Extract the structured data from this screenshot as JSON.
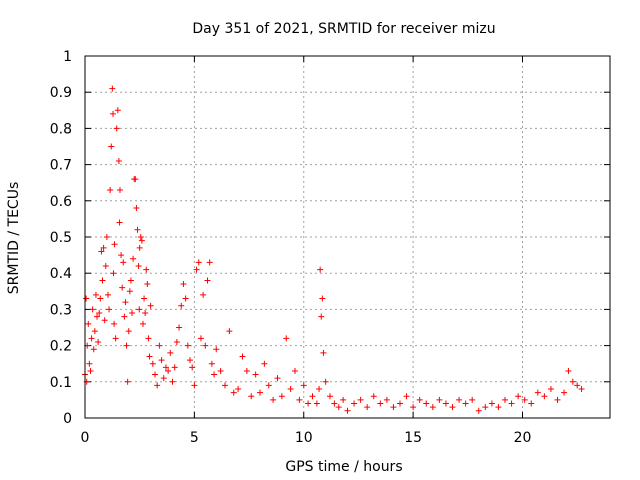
{
  "chart_data": {
    "type": "scatter",
    "title": "Day 351 of 2021, SRMTID for receiver mizu",
    "xlabel": "GPS time / hours",
    "ylabel": "SRMTID / TECUs",
    "xlim": [
      0,
      24
    ],
    "ylim": [
      0,
      1
    ],
    "x_ticks": [
      0,
      5,
      10,
      15,
      20
    ],
    "x_tick_labels": [
      "0",
      "5",
      "10",
      "15",
      "20"
    ],
    "y_ticks": [
      0,
      0.1,
      0.2,
      0.3,
      0.4,
      0.5,
      0.6,
      0.7,
      0.8,
      0.9,
      1
    ],
    "y_tick_labels": [
      "0",
      "0.1",
      "0.2",
      "0.3",
      "0.4",
      "0.5",
      "0.6",
      "0.7",
      "0.8",
      "0.9",
      "1"
    ],
    "grid": true,
    "marker": "+",
    "color": "#ff0000",
    "series": [
      {
        "name": "SRMTID",
        "x": [
          0.0,
          0.05,
          0.08,
          0.1,
          0.15,
          0.2,
          0.25,
          0.3,
          0.35,
          0.4,
          0.45,
          0.5,
          0.55,
          0.6,
          0.65,
          0.7,
          0.75,
          0.8,
          0.85,
          0.9,
          0.95,
          1.0,
          1.05,
          1.1,
          1.15,
          1.2,
          1.25,
          1.28,
          1.3,
          1.33,
          1.35,
          1.4,
          1.45,
          1.5,
          1.55,
          1.58,
          1.6,
          1.65,
          1.7,
          1.75,
          1.8,
          1.85,
          1.9,
          1.95,
          2.0,
          2.05,
          2.1,
          2.15,
          2.2,
          2.25,
          2.3,
          2.35,
          2.4,
          2.45,
          2.48,
          2.5,
          2.55,
          2.6,
          2.65,
          2.7,
          2.75,
          2.8,
          2.85,
          2.9,
          2.95,
          3.0,
          3.1,
          3.2,
          3.3,
          3.4,
          3.5,
          3.6,
          3.7,
          3.8,
          3.9,
          4.0,
          4.1,
          4.2,
          4.3,
          4.4,
          4.5,
          4.6,
          4.7,
          4.8,
          4.9,
          5.0,
          5.1,
          5.2,
          5.3,
          5.4,
          5.5,
          5.6,
          5.7,
          5.8,
          5.9,
          6.0,
          6.2,
          6.4,
          6.6,
          6.8,
          7.0,
          7.2,
          7.4,
          7.6,
          7.8,
          8.0,
          8.2,
          8.4,
          8.6,
          8.8,
          9.0,
          9.2,
          9.4,
          9.6,
          9.8,
          10.0,
          10.2,
          10.4,
          10.6,
          10.7,
          10.75,
          10.8,
          10.85,
          10.9,
          11.0,
          11.2,
          11.4,
          11.6,
          11.8,
          12.0,
          12.3,
          12.6,
          12.9,
          13.2,
          13.5,
          13.8,
          14.1,
          14.4,
          14.7,
          15.0,
          15.3,
          15.6,
          15.9,
          16.2,
          16.5,
          16.8,
          17.1,
          17.4,
          17.7,
          18.0,
          18.3,
          18.6,
          18.9,
          19.2,
          19.5,
          19.8,
          20.1,
          20.4,
          20.7,
          21.0,
          21.3,
          21.6,
          21.9,
          22.1,
          22.3,
          22.5,
          22.7
        ],
        "y": [
          0.12,
          0.33,
          0.1,
          0.2,
          0.26,
          0.15,
          0.13,
          0.22,
          0.3,
          0.19,
          0.24,
          0.34,
          0.28,
          0.21,
          0.29,
          0.33,
          0.46,
          0.38,
          0.47,
          0.27,
          0.42,
          0.5,
          0.34,
          0.3,
          0.63,
          0.75,
          0.91,
          0.84,
          0.4,
          0.26,
          0.48,
          0.22,
          0.8,
          0.85,
          0.71,
          0.54,
          0.63,
          0.45,
          0.36,
          0.43,
          0.28,
          0.32,
          0.2,
          0.1,
          0.24,
          0.35,
          0.38,
          0.29,
          0.44,
          0.66,
          0.66,
          0.58,
          0.52,
          0.42,
          0.3,
          0.47,
          0.5,
          0.49,
          0.26,
          0.33,
          0.29,
          0.41,
          0.37,
          0.22,
          0.17,
          0.31,
          0.15,
          0.12,
          0.09,
          0.2,
          0.16,
          0.11,
          0.14,
          0.13,
          0.18,
          0.1,
          0.14,
          0.21,
          0.25,
          0.31,
          0.37,
          0.33,
          0.2,
          0.16,
          0.14,
          0.09,
          0.41,
          0.43,
          0.22,
          0.34,
          0.2,
          0.38,
          0.43,
          0.15,
          0.12,
          0.19,
          0.13,
          0.09,
          0.24,
          0.07,
          0.08,
          0.17,
          0.13,
          0.06,
          0.12,
          0.07,
          0.15,
          0.09,
          0.05,
          0.11,
          0.06,
          0.22,
          0.08,
          0.13,
          0.05,
          0.09,
          0.04,
          0.06,
          0.04,
          0.08,
          0.41,
          0.28,
          0.33,
          0.18,
          0.1,
          0.06,
          0.04,
          0.03,
          0.05,
          0.02,
          0.04,
          0.05,
          0.03,
          0.06,
          0.04,
          0.05,
          0.03,
          0.04,
          0.06,
          0.03,
          0.05,
          0.04,
          0.03,
          0.05,
          0.04,
          0.03,
          0.05,
          0.04,
          0.05,
          0.02,
          0.03,
          0.04,
          0.03,
          0.05,
          0.04,
          0.06,
          0.05,
          0.04,
          0.07,
          0.06,
          0.08,
          0.05,
          0.07,
          0.13,
          0.1,
          0.09,
          0.08
        ]
      }
    ]
  }
}
